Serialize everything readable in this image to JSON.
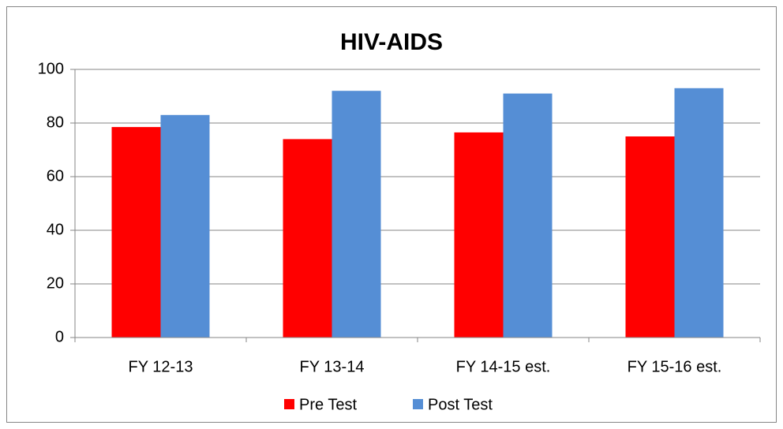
{
  "chart_data": {
    "type": "bar",
    "title": "HIV-AIDS",
    "categories": [
      "FY 12-13",
      "FY 13-14",
      "FY 14-15 est.",
      "FY 15-16 est."
    ],
    "series": [
      {
        "name": "Pre Test",
        "color": "#ff0000",
        "values": [
          78.5,
          74,
          76.5,
          75
        ]
      },
      {
        "name": "Post Test",
        "color": "#558ed5",
        "values": [
          83,
          92,
          91,
          93
        ]
      }
    ],
    "ylim": [
      0,
      100
    ],
    "yticks": [
      0,
      20,
      40,
      60,
      80,
      100
    ],
    "grid": true,
    "legend": "bottom"
  }
}
